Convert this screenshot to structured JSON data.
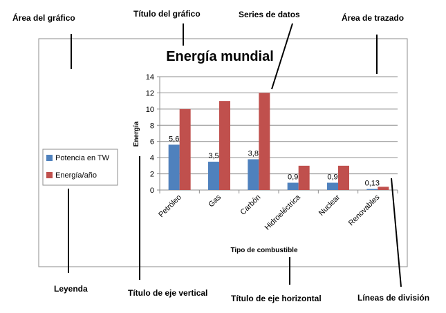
{
  "chart_data": {
    "type": "bar",
    "title": "Energía mundial",
    "xlabel": "Tipo de combustible",
    "ylabel": "Energía",
    "categories": [
      "Petróleo",
      "Gas",
      "Carbón",
      "Hidroeléctrica",
      "Nuclear",
      "Renovables"
    ],
    "series": [
      {
        "name": "Potencia en TW",
        "color": "#4F81BD",
        "values": [
          5.6,
          3.5,
          3.8,
          0.9,
          0.9,
          0.13
        ],
        "labels": [
          "5,6",
          "3,5",
          "3,8",
          "0,9",
          "0,9",
          "0,13"
        ]
      },
      {
        "name": "Energía/año",
        "color": "#C0504D",
        "values": [
          10,
          11,
          12,
          3,
          3,
          0.4
        ]
      }
    ],
    "ylim": [
      0,
      14
    ],
    "yticks": [
      0,
      2,
      4,
      6,
      8,
      10,
      12,
      14
    ],
    "grid": true,
    "legend_position": "left"
  },
  "annotations": {
    "chart_area": "Área del gráfico",
    "chart_title": "Título del gráfico",
    "data_series": "Series de datos",
    "plot_area": "Área de trazado",
    "legend": "Leyenda",
    "vertical_axis_title": "Título de eje vertical",
    "horizontal_axis_title": "Título de eje horizontal",
    "gridlines": "Líneas de división"
  }
}
